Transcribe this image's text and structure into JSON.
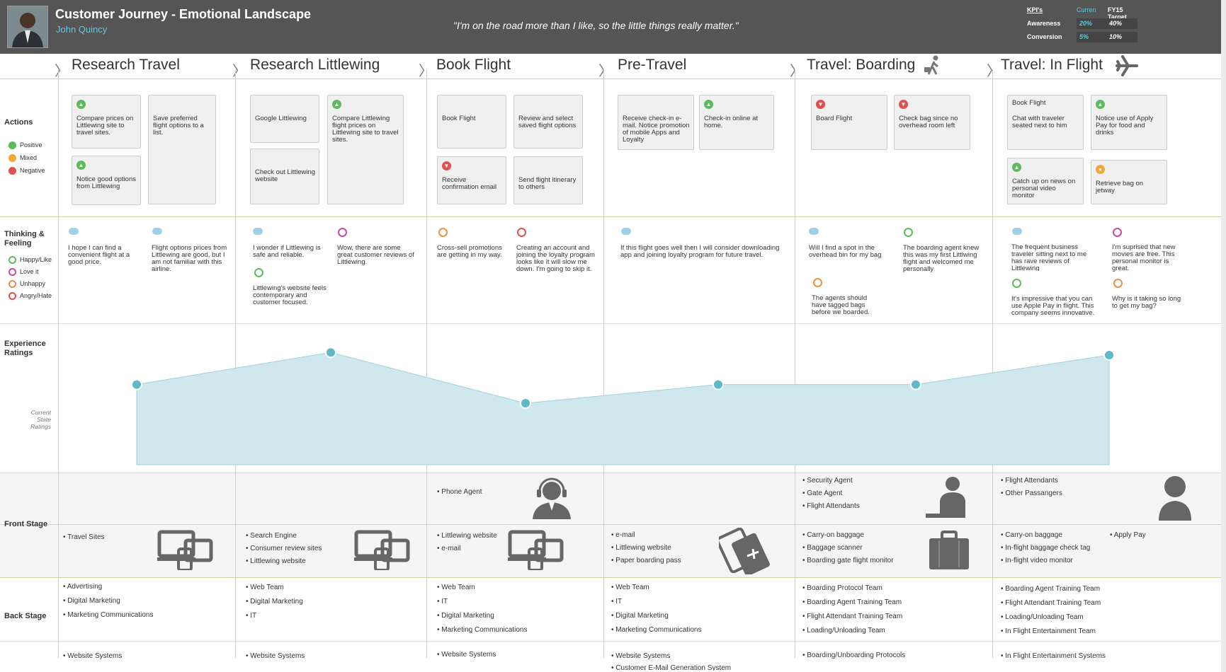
{
  "header": {
    "title": "Customer Journey - Emotional Landscape",
    "persona": "John Quincy",
    "quote": "\"I'm on the road more than I like, so the little things really matter.\"",
    "kpi": {
      "col1": "KPI's",
      "col2": "Curren",
      "col3": "FY15 Target",
      "rows": [
        {
          "label": "Awareness",
          "current": "20%",
          "target": "40%"
        },
        {
          "label": "Conversion",
          "current": "5%",
          "target": "10%"
        }
      ]
    }
  },
  "stages": [
    "Research Travel",
    "Research Littlewing",
    "Book Flight",
    "Pre-Travel",
    "Travel: Boarding",
    "Travel: In Flight"
  ],
  "row_labels": {
    "actions": "Actions",
    "thinking": "Thinking & Feeling",
    "experience": "Experience Ratings",
    "current_state": "Current State Ratings",
    "front_stage": "Front Stage",
    "back_stage": "Back Stage"
  },
  "legend_actions": [
    "Positive",
    "Mixed",
    "Negative"
  ],
  "legend_thinking": [
    "Happy/Like",
    "Love it",
    "Unhappy",
    "Angry/Hate"
  ],
  "actions": [
    {
      "text": "Compare prices on Littlewing site to travel sites.",
      "icon": "positive"
    },
    {
      "text": "Save preferred flight options to a list.",
      "icon": "none"
    },
    {
      "text": "Notice good options from Littlewing",
      "icon": "positive"
    },
    {
      "text": "Google Littlewing",
      "icon": "none"
    },
    {
      "text": "Compare Littlewing flight prices on Littlewing site to travel sites.",
      "icon": "positive"
    },
    {
      "text": "Check out Littlewing website",
      "icon": "none"
    },
    {
      "text": "Book Flight",
      "icon": "none"
    },
    {
      "text": "Review and select saved flight options",
      "icon": "none"
    },
    {
      "text": "Receive confirmation email",
      "icon": "negative"
    },
    {
      "text": "Send flight itinerary to others",
      "icon": "none"
    },
    {
      "text": "Receive check-in e-mail. Notice promotion of mobile Apps and Loyalty",
      "icon": "none"
    },
    {
      "text": "Check-in online at home.",
      "icon": "positive"
    },
    {
      "text": "Board Flight",
      "icon": "negative"
    },
    {
      "text": "Check bag since no overhead room left",
      "icon": "negative"
    },
    {
      "text": "Book Flight",
      "icon": "none"
    },
    {
      "text": "Chat with traveler seated next to him",
      "icon": "none"
    },
    {
      "text": "Notice use of Apply Pay for food and drinks",
      "icon": "positive"
    },
    {
      "text": "Catch up on news on personal video monitor",
      "icon": "positive"
    },
    {
      "text": "Retrieve bag on jetway",
      "icon": "mixed"
    }
  ],
  "thoughts": [
    {
      "text": "I hope I can find a convenient flight at a good price.",
      "icon": "bubble"
    },
    {
      "text": "Flight options prices from Littlewing are good, but I am not familiar with this airline.",
      "icon": "bubble"
    },
    {
      "text": "I wonder if Littlewing is safe and reliable.",
      "icon": "bubble"
    },
    {
      "text": "Wow, there are some great customer reviews of Littlewing.",
      "icon": "love"
    },
    {
      "text": "Littlewing's website feels contemporary and customer focused.",
      "icon": "happy"
    },
    {
      "text": "Cross-sell promotions are getting in my way.",
      "icon": "unhappy"
    },
    {
      "text": "Creating an account and joining the loyalty program looks like it will slow me down. I'm going to skip it.",
      "icon": "angry"
    },
    {
      "text": "If this flight goes well then I will consider downloading app and joining loyalty program for future travel.",
      "icon": "bubble"
    },
    {
      "text": "Will I find a spot in the overhead bin for my bag",
      "icon": "bubble"
    },
    {
      "text": "The boarding agent knew this was my first Littlwing flight and welcomed me personally",
      "icon": "happy"
    },
    {
      "text": "The agents should have tagged bags before we boarded.",
      "icon": "unhappy"
    },
    {
      "text": "The frequent business traveler sitting next to me has rave reviews of Littlewing",
      "icon": "bubble"
    },
    {
      "text": "I'm suprised that new movies are free. This personal monitor is great.",
      "icon": "love"
    },
    {
      "text": "It's impressive that you can use Apple Pay in flight. This company seems innovative.",
      "icon": "happy"
    },
    {
      "text": "Why is it taking so long to get my bag?",
      "icon": "unhappy"
    }
  ],
  "chart_data": {
    "type": "area",
    "x": [
      "Research Travel",
      "Research Littlewing",
      "Book Flight",
      "Pre-Travel",
      "Travel: Boarding",
      "Travel: In Flight"
    ],
    "values": [
      3,
      4.2,
      2.3,
      3,
      3,
      4.1
    ],
    "ylim": [
      0,
      5
    ],
    "title": "",
    "xlabel": "",
    "ylabel": "",
    "color": "#cfe8ee",
    "point_color": "#5fb9c9"
  },
  "front_people": [
    [],
    [],
    [
      "Phone Agent"
    ],
    [],
    [
      "Security Agent",
      "Gate Agent",
      "Flight Attendants"
    ],
    [
      "Flight Attendants",
      "Other Passangers"
    ]
  ],
  "front_touch": [
    [
      "Travel Sites"
    ],
    [
      "Search Engine",
      "Consumer review sites",
      "Littlewing website"
    ],
    [
      "Littlewing website",
      "e-mail"
    ],
    [
      "e-mail",
      "Littlewing website",
      "Paper boarding pass"
    ],
    [
      "Carry-on baggage",
      "Baggage scanner",
      "Boarding gate flight monitor"
    ],
    [
      "Carry-on baggage",
      "In-flight baggage check tag",
      "In-flight video monitor"
    ]
  ],
  "front_touch_extra": [
    "Apply Pay"
  ],
  "back_teams": [
    [
      "Advertising",
      "Digital Marketing",
      "Marketing Communications"
    ],
    [
      "Web Team",
      "Digital Marketing",
      "IT"
    ],
    [
      "Web Team",
      "IT",
      "Digital Marketing",
      "Marketing Communications"
    ],
    [
      "Web Team",
      "IT",
      "Digital Marketing",
      "Marketing Communications"
    ],
    [
      "Boarding  Protocol Team",
      "Boarding  Agent Training Team",
      "Flight Attendant Training Team",
      "Loading/Unloading Team"
    ],
    [
      "Boarding  Agent Training Team",
      "Flight Attendant Training Team",
      "Loading/Unloading Team",
      "In Flight Entertainment Team"
    ]
  ],
  "back_systems": [
    [
      "Website Systems"
    ],
    [
      "Website Systems"
    ],
    [
      "Website Systems"
    ],
    [
      "Website Systems",
      "Customer E-Mail Generation System"
    ],
    [
      "Boarding/Unboarding Protocols"
    ],
    [
      "In Flight Entertainment Systems"
    ]
  ]
}
